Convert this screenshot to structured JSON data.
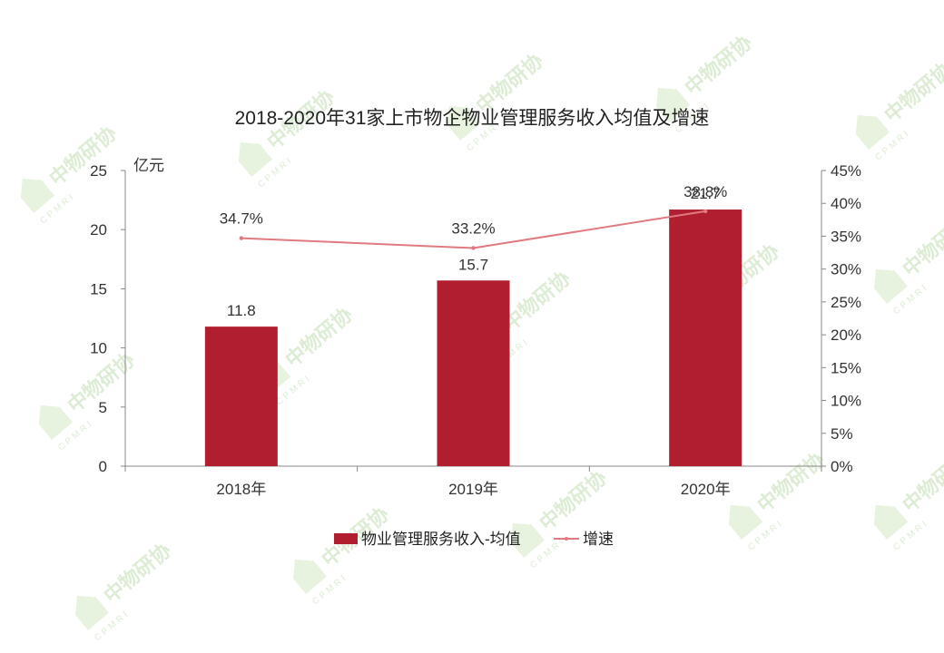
{
  "watermark": {
    "name": "中物研协",
    "sub": "CPMRI"
  },
  "chart_data": {
    "type": "bar",
    "title": "2018-2020年31家上市物企物业管理服务收入均值及增速",
    "categories": [
      "2018年",
      "2019年",
      "2020年"
    ],
    "y_left": {
      "unit": "亿元",
      "ylim": [
        0,
        25
      ],
      "ticks": [
        "0",
        "5",
        "10",
        "15",
        "20",
        "25"
      ]
    },
    "y_right": {
      "ylim": [
        0,
        45
      ],
      "ticks": [
        "0%",
        "5%",
        "10%",
        "15%",
        "20%",
        "25%",
        "30%",
        "35%",
        "40%",
        "45%"
      ]
    },
    "series": [
      {
        "name": "物业管理服务收入-均值",
        "type": "bar",
        "axis": "left",
        "color": "#B01E30",
        "values": [
          11.8,
          15.7,
          21.7
        ],
        "labels": [
          "11.8",
          "15.7",
          "21.7"
        ]
      },
      {
        "name": "增速",
        "type": "line",
        "axis": "right",
        "color": "#E07A80",
        "values": [
          34.7,
          33.2,
          38.8
        ],
        "labels": [
          "34.7%",
          "33.2%",
          "38.8%"
        ]
      }
    ],
    "legend": "bottom",
    "grid": false
  }
}
